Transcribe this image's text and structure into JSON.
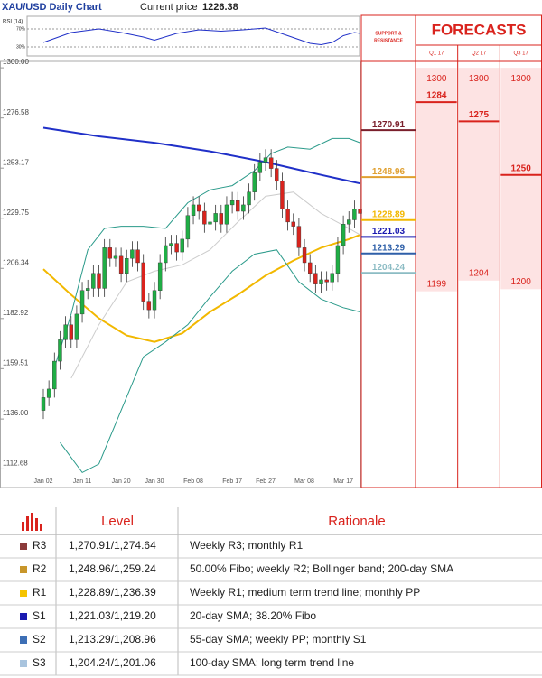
{
  "header": {
    "title": "XAU/USD Daily Chart",
    "price_label": "Current price",
    "price": 1226.38
  },
  "chart_data": {
    "type": "candlestick",
    "categories": [
      "Jan 02",
      null,
      null,
      null,
      null,
      null,
      null,
      "Jan 11",
      null,
      null,
      null,
      null,
      null,
      null,
      "Jan 20",
      null,
      null,
      null,
      null,
      null,
      "Jan 30",
      null,
      null,
      null,
      null,
      null,
      null,
      "Feb 08",
      null,
      null,
      null,
      null,
      null,
      null,
      "Feb 17",
      null,
      null,
      null,
      null,
      null,
      "Feb 27",
      null,
      null,
      null,
      null,
      null,
      null,
      "Mar 08",
      null,
      null,
      null,
      null,
      null,
      null,
      "Mar 17",
      null,
      null,
      null
    ],
    "open": [
      1140,
      1146,
      1150,
      1163,
      1173,
      1180,
      1173,
      1185,
      1196,
      1197,
      1204,
      1197,
      1216,
      1211,
      1212,
      1204,
      1211,
      1215,
      1209,
      1191,
      1187,
      1196,
      1209,
      1217,
      1218,
      1214,
      1220,
      1231,
      1236,
      1233,
      1227,
      1228,
      1232,
      1227,
      1236,
      1238,
      1233,
      1236,
      1242,
      1251,
      1256,
      1258,
      1253,
      1247,
      1234,
      1228,
      1226,
      1216,
      1209,
      1204,
      1199,
      1201,
      1200,
      1204,
      1217,
      1227,
      1229,
      1234
    ],
    "high": [
      1150,
      1154,
      1167,
      1177,
      1184,
      1184,
      1189,
      1200,
      1201,
      1208,
      1208,
      1220,
      1220,
      1216,
      1216,
      1215,
      1219,
      1219,
      1213,
      1195,
      1200,
      1213,
      1221,
      1222,
      1222,
      1224,
      1235,
      1240,
      1240,
      1237,
      1232,
      1236,
      1236,
      1240,
      1242,
      1242,
      1240,
      1246,
      1255,
      1260,
      1262,
      1262,
      1257,
      1251,
      1238,
      1232,
      1230,
      1220,
      1213,
      1208,
      1205,
      1205,
      1208,
      1221,
      1231,
      1233,
      1238,
      1238
    ],
    "low": [
      1136,
      1142,
      1146,
      1159,
      1169,
      1169,
      1169,
      1181,
      1192,
      1193,
      1193,
      1193,
      1207,
      1207,
      1200,
      1200,
      1207,
      1205,
      1187,
      1183,
      1183,
      1192,
      1205,
      1213,
      1210,
      1210,
      1216,
      1227,
      1229,
      1223,
      1223,
      1224,
      1223,
      1223,
      1232,
      1229,
      1229,
      1232,
      1238,
      1247,
      1252,
      1249,
      1243,
      1230,
      1224,
      1222,
      1212,
      1205,
      1200,
      1195,
      1195,
      1196,
      1196,
      1200,
      1213,
      1223,
      1225,
      1228
    ],
    "close": [
      1146,
      1150,
      1163,
      1173,
      1180,
      1173,
      1185,
      1196,
      1197,
      1204,
      1197,
      1216,
      1211,
      1212,
      1204,
      1211,
      1215,
      1209,
      1191,
      1187,
      1196,
      1209,
      1217,
      1218,
      1214,
      1220,
      1231,
      1236,
      1233,
      1227,
      1228,
      1232,
      1227,
      1236,
      1238,
      1233,
      1236,
      1242,
      1251,
      1256,
      1258,
      1253,
      1247,
      1234,
      1228,
      1226,
      1216,
      1209,
      1204,
      1199,
      1201,
      1200,
      1204,
      1217,
      1227,
      1229,
      1234,
      1232
    ],
    "up_color": "#1fae45",
    "down_color": "#d9231d",
    "ylim": [
      1104,
      1303
    ],
    "yticks": [
      {
        "value": 1300,
        "label": "1300.00"
      },
      1276.58,
      1253.17,
      1229.75,
      1206.34,
      1182.92,
      1159.51,
      {
        "value": 1136,
        "label": "1136.00"
      },
      1112.68
    ],
    "overlays": [
      {
        "color": "#2030c8",
        "x": [
          0,
          10,
          20,
          30,
          40,
          45,
          50,
          57
        ],
        "values": [
          1272,
          1268,
          1265,
          1261,
          1256,
          1253,
          1250,
          1246
        ]
      },
      {
        "color": "#f2b800",
        "x": [
          0,
          5,
          10,
          15,
          20,
          25,
          30,
          35,
          40,
          45,
          50,
          55,
          57
        ],
        "values": [
          1206,
          1194,
          1183,
          1175,
          1172,
          1176,
          1186,
          1194,
          1203,
          1210,
          1216,
          1220,
          1222
        ]
      },
      {
        "color": "#2a9a8a",
        "x": [
          2,
          5,
          8,
          11,
          14,
          18,
          22,
          26,
          30,
          34,
          38,
          41,
          44,
          48,
          52,
          55,
          57
        ],
        "values": [
          1160,
          1185,
          1215,
          1225,
          1226,
          1226,
          1225,
          1237,
          1243,
          1245,
          1252,
          1260,
          1263,
          1262,
          1267,
          1267,
          1265
        ]
      },
      {
        "color": "#2a9a8a",
        "x": [
          3,
          7,
          10,
          14,
          18,
          22,
          26,
          30,
          34,
          38,
          42,
          46,
          50,
          54,
          57
        ],
        "values": [
          1125,
          1111,
          1115,
          1140,
          1165,
          1172,
          1180,
          1193,
          1205,
          1213,
          1215,
          1200,
          1192,
          1188,
          1186
        ]
      },
      {
        "color": "#cccccc",
        "x": [
          5,
          10,
          15,
          20,
          25,
          30,
          35,
          40,
          45,
          50,
          55,
          57
        ],
        "values": [
          1155,
          1180,
          1200,
          1205,
          1208,
          1215,
          1228,
          1240,
          1242,
          1232,
          1225,
          1222
        ]
      }
    ],
    "rsi": {
      "label": "RSI (14)",
      "color": "#2030c8",
      "ylim": [
        0,
        100
      ],
      "yticks": [
        {
          "value": 70,
          "label": "70%"
        },
        {
          "value": 30,
          "label": "30%"
        }
      ],
      "x": [
        0,
        5,
        10,
        14,
        18,
        20,
        24,
        28,
        32,
        36,
        40,
        44,
        48,
        50,
        52,
        54,
        56,
        57
      ],
      "values": [
        40,
        62,
        70,
        62,
        52,
        45,
        60,
        68,
        65,
        68,
        72,
        55,
        38,
        35,
        40,
        55,
        62,
        60
      ]
    }
  },
  "levels": {
    "title": [
      "SUPPORT &",
      "RESISTANCE"
    ],
    "items": [
      {
        "value": 1270.91,
        "color": "#7a1f2b"
      },
      {
        "value": 1248.96,
        "color": "#e0a030"
      },
      {
        "value": 1228.89,
        "color": "#f2b800"
      },
      {
        "value": 1221.03,
        "color": "#1a1ab0"
      },
      {
        "value": 1213.29,
        "color": "#2e5fa8"
      },
      {
        "value": 1204.24,
        "color": "#8cbcc4"
      }
    ]
  },
  "forecasts": {
    "title": "FORECASTS",
    "columns": [
      {
        "label": "Q1 17",
        "top": 1300,
        "high": 1284,
        "low": 1199
      },
      {
        "label": "Q2 17",
        "top": 1300,
        "high": 1275,
        "low": 1204
      },
      {
        "label": "Q3 17",
        "top": 1300,
        "high": 1250,
        "low": 1200
      }
    ]
  },
  "table": {
    "header": [
      "Level",
      "Rationale"
    ],
    "rows": [
      {
        "label": "R3",
        "color": "#8b3a3a",
        "level": "1,270.91/1,274.64",
        "rationale": "Weekly R3; monthly R1"
      },
      {
        "label": "R2",
        "color": "#c8962a",
        "level": "1,248.96/1,259.24",
        "rationale": "50.00% Fibo; weekly R2; Bollinger band; 200-day SMA"
      },
      {
        "label": "R1",
        "color": "#f5c400",
        "level": "1,228.89/1,236.39",
        "rationale": "Weekly R1; medium term trend line; monthly PP"
      },
      {
        "label": "S1",
        "color": "#1a1ab0",
        "level": "1,221.03/1,219.20",
        "rationale": "20-day SMA; 38.20% Fibo"
      },
      {
        "label": "S2",
        "color": "#3d6fb5",
        "level": "1,213.29/1,208.96",
        "rationale": "55-day SMA; weekly PP; monthly S1"
      },
      {
        "label": "S3",
        "color": "#a9c4de",
        "level": "1,204.24/1,201.06",
        "rationale": "100-day SMA; long term trend line"
      }
    ]
  }
}
